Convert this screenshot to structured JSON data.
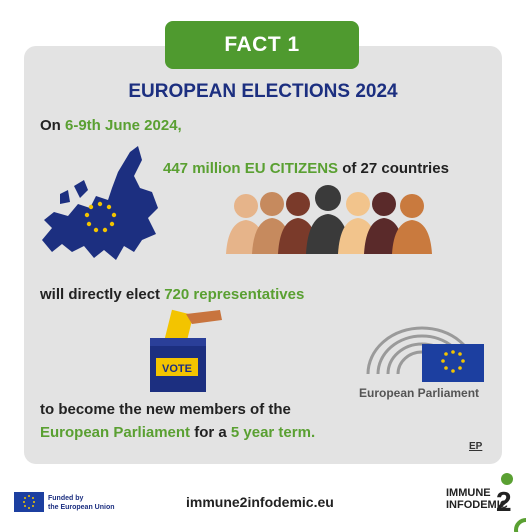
{
  "header": {
    "tab": "FACT 1",
    "title": "EUROPEAN ELECTIONS 2024"
  },
  "line1": {
    "prefix": "On ",
    "dates": "6-9th June 2024,"
  },
  "line2": {
    "highlight": "447 million EU CITIZENS",
    "rest": " of 27 countries"
  },
  "line3": {
    "prefix": "will directly elect ",
    "highlight": "720 representatives"
  },
  "line4": {
    "text": "to become the new members of the"
  },
  "line5": {
    "highlight1": "European Parliament",
    "mid": " for a ",
    "highlight2": "5 year term."
  },
  "vote_box_label": "VOTE",
  "parliament_label": "European Parliament",
  "ep_tag": "EP",
  "footer": {
    "funded_line1": "Funded by",
    "funded_line2": "the European Union",
    "url": "immune2infodemic.eu",
    "brand_line1": "IMMUNE",
    "brand_line2": "INFODEMIC",
    "brand_number": "2"
  },
  "colors": {
    "green": "#5aa032",
    "tab_green": "#4f9a2f",
    "eu_blue": "#1c2f80",
    "card": "#e3e3e3"
  }
}
